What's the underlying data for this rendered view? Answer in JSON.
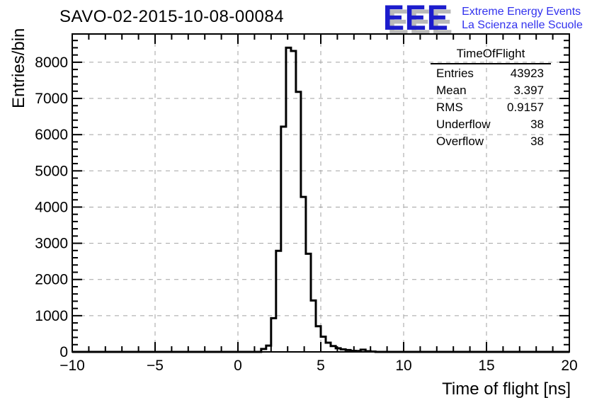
{
  "header": {
    "title": "SAVO-02-2015-10-08-00084"
  },
  "logo": {
    "letters": "EEE",
    "line1": "Extreme Energy Events",
    "line2": "La Scienza nelle Scuole",
    "letters_color": "#1c1ccd",
    "shadow_color": "#b9b9b9",
    "tagline_color": "#3232ee"
  },
  "stats": {
    "title": "TimeOfFlight",
    "rows": [
      {
        "label": "Entries",
        "value": "43923"
      },
      {
        "label": "Mean",
        "value": "3.397"
      },
      {
        "label": "RMS",
        "value": "0.9157"
      },
      {
        "label": "Underflow",
        "value": "38"
      },
      {
        "label": "Overflow",
        "value": "38"
      }
    ]
  },
  "chart_data": {
    "type": "bar",
    "style": "root-step-histogram",
    "title": "SAVO-02-2015-10-08-00084",
    "xlabel": "Time of flight [ns]",
    "ylabel": "Entries/bin",
    "xlim": [
      -10,
      20
    ],
    "ylim": [
      0,
      8780
    ],
    "grid": "dashed-on-major-ticks",
    "legend_position": "none",
    "line_color": "#000000",
    "grid_color": "#a2a2a2",
    "x_ticks": [
      {
        "v": -10,
        "label": "−10"
      },
      {
        "v": -5,
        "label": "−5"
      },
      {
        "v": 0,
        "label": "0"
      },
      {
        "v": 5,
        "label": "5"
      },
      {
        "v": 10,
        "label": "10"
      },
      {
        "v": 15,
        "label": "15"
      },
      {
        "v": 20,
        "label": "20"
      }
    ],
    "x_minor_step": 1,
    "y_ticks": [
      {
        "v": 0,
        "label": "0"
      },
      {
        "v": 1000,
        "label": "1000"
      },
      {
        "v": 2000,
        "label": "2000"
      },
      {
        "v": 3000,
        "label": "3000"
      },
      {
        "v": 4000,
        "label": "4000"
      },
      {
        "v": 5000,
        "label": "5000"
      },
      {
        "v": 6000,
        "label": "6000"
      },
      {
        "v": 7000,
        "label": "7000"
      },
      {
        "v": 8000,
        "label": "8000"
      }
    ],
    "y_minor_step": 200,
    "bin_start": 1.4,
    "bin_width": 0.3,
    "values": [
      80,
      175,
      930,
      2790,
      6220,
      8400,
      8310,
      7180,
      4280,
      2710,
      1420,
      710,
      420,
      255,
      160,
      100,
      70,
      50,
      30,
      25,
      60,
      20,
      10
    ]
  }
}
